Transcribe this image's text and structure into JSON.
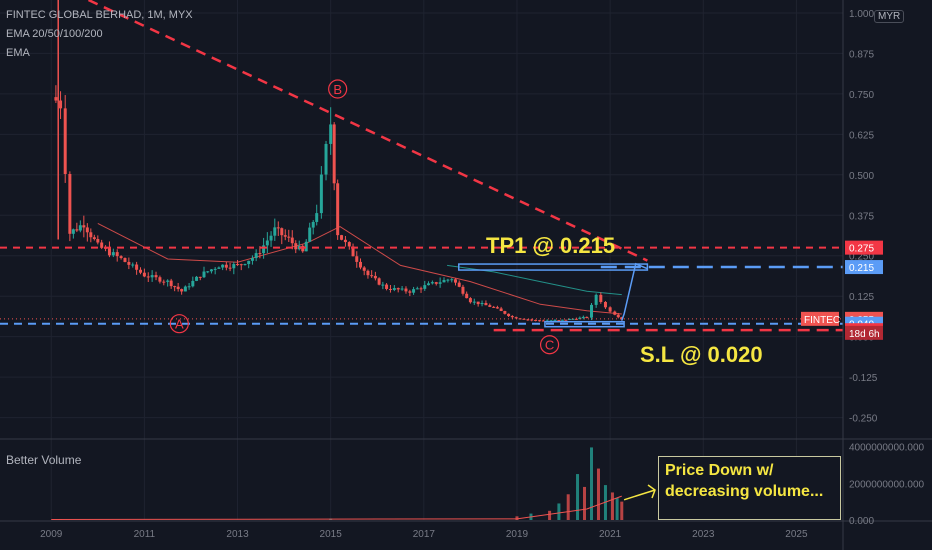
{
  "header": {
    "symbol": "FINTEC GLOBAL BERHAD, 1M, MYX",
    "indicator1": "EMA 20/50/100/200",
    "indicator2": "EMA",
    "volume_label": "Better Volume",
    "currency": "MYR"
  },
  "annotations": {
    "tp1": "TP1 @ 0.215",
    "sl": "S.L @ 0.020",
    "wave_a": "A",
    "wave_b": "B",
    "wave_c": "C",
    "note": "Price Down w/ decreasing volume..."
  },
  "price_labels": {
    "sym_tag": "FINTEC",
    "last": "0.055",
    "countdown": "18d 6h",
    "resistance": "0.275",
    "tp1": "0.215",
    "support": "0.040",
    "stop": "0.020"
  },
  "colors": {
    "background": "#131722",
    "up": "#26a69a",
    "down": "#ef5350",
    "resistance": "#f23645",
    "target": "#5b9cf6",
    "annotation_text": "#f5e642"
  },
  "chart_data": [
    {
      "type": "candlestick",
      "xlabel": "",
      "ylabel": "",
      "x_ticks": [
        "2009",
        "2011",
        "2013",
        "2015",
        "2017",
        "2019",
        "2021",
        "2023",
        "2025"
      ],
      "y_ticks": [
        "1.000",
        "0.875",
        "0.750",
        "0.625",
        "0.500",
        "0.375",
        "0.250",
        "0.125",
        "0.000",
        "-0.125",
        "-0.250"
      ],
      "ylim": [
        -0.31,
        1.04
      ],
      "xlim": [
        2007.9,
        2026.0
      ],
      "close_series": [
        [
          2009.0,
          0.74
        ],
        [
          2009.2,
          0.72
        ],
        [
          2009.4,
          0.32
        ],
        [
          2009.7,
          0.35
        ],
        [
          2010.0,
          0.28
        ],
        [
          2010.5,
          0.24
        ],
        [
          2011.0,
          0.19
        ],
        [
          2011.5,
          0.17
        ],
        [
          2011.8,
          0.14
        ],
        [
          2012.2,
          0.19
        ],
        [
          2012.6,
          0.22
        ],
        [
          2013.0,
          0.22
        ],
        [
          2013.4,
          0.25
        ],
        [
          2013.8,
          0.33
        ],
        [
          2014.1,
          0.3
        ],
        [
          2014.4,
          0.26
        ],
        [
          2014.7,
          0.39
        ],
        [
          2014.9,
          0.58
        ],
        [
          2015.0,
          0.66
        ],
        [
          2015.15,
          0.32
        ],
        [
          2015.4,
          0.27
        ],
        [
          2015.8,
          0.19
        ],
        [
          2016.2,
          0.15
        ],
        [
          2016.7,
          0.14
        ],
        [
          2017.1,
          0.16
        ],
        [
          2017.6,
          0.18
        ],
        [
          2018.0,
          0.11
        ],
        [
          2018.5,
          0.09
        ],
        [
          2018.9,
          0.06
        ],
        [
          2019.4,
          0.05
        ],
        [
          2019.9,
          0.05
        ],
        [
          2020.2,
          0.055
        ],
        [
          2020.5,
          0.06
        ],
        [
          2020.7,
          0.13
        ],
        [
          2020.9,
          0.09
        ],
        [
          2021.1,
          0.07
        ],
        [
          2021.25,
          0.055
        ]
      ],
      "ema_series": [
        {
          "color": "#ef5350",
          "points": [
            [
              2010.0,
              0.35
            ],
            [
              2011.5,
              0.24
            ],
            [
              2013.0,
              0.23
            ],
            [
              2014.5,
              0.29
            ],
            [
              2015.2,
              0.34
            ],
            [
              2016.5,
              0.22
            ],
            [
              2018.0,
              0.17
            ],
            [
              2019.5,
              0.1
            ],
            [
              2020.5,
              0.08
            ],
            [
              2021.25,
              0.07
            ]
          ]
        },
        {
          "color": "#26a69a",
          "points": [
            [
              2017.5,
              0.22
            ],
            [
              2018.5,
              0.2
            ],
            [
              2019.5,
              0.17
            ],
            [
              2020.5,
              0.14
            ],
            [
              2021.25,
              0.13
            ]
          ]
        }
      ],
      "levels": {
        "resistance": 0.275,
        "tp1": 0.215,
        "last": 0.055,
        "support": 0.04,
        "stop": 0.02
      },
      "trendline": [
        [
          2009.8,
          1.04
        ],
        [
          2021.8,
          0.235
        ]
      ]
    },
    {
      "type": "bar",
      "title": "Better Volume",
      "y_ticks": [
        "4000000000.000",
        "2000000000.000",
        "0.000"
      ],
      "ylim": [
        0,
        4300000000
      ],
      "volume_series": [
        [
          2015.0,
          80000000
        ],
        [
          2019.0,
          200000000
        ],
        [
          2019.3,
          350000000
        ],
        [
          2019.7,
          500000000
        ],
        [
          2019.9,
          900000000
        ],
        [
          2020.1,
          1400000000
        ],
        [
          2020.3,
          2500000000
        ],
        [
          2020.45,
          1800000000
        ],
        [
          2020.6,
          3950000000
        ],
        [
          2020.75,
          2800000000
        ],
        [
          2020.9,
          1900000000
        ],
        [
          2021.05,
          1500000000
        ],
        [
          2021.15,
          1200000000
        ],
        [
          2021.25,
          1000000000
        ]
      ]
    }
  ]
}
